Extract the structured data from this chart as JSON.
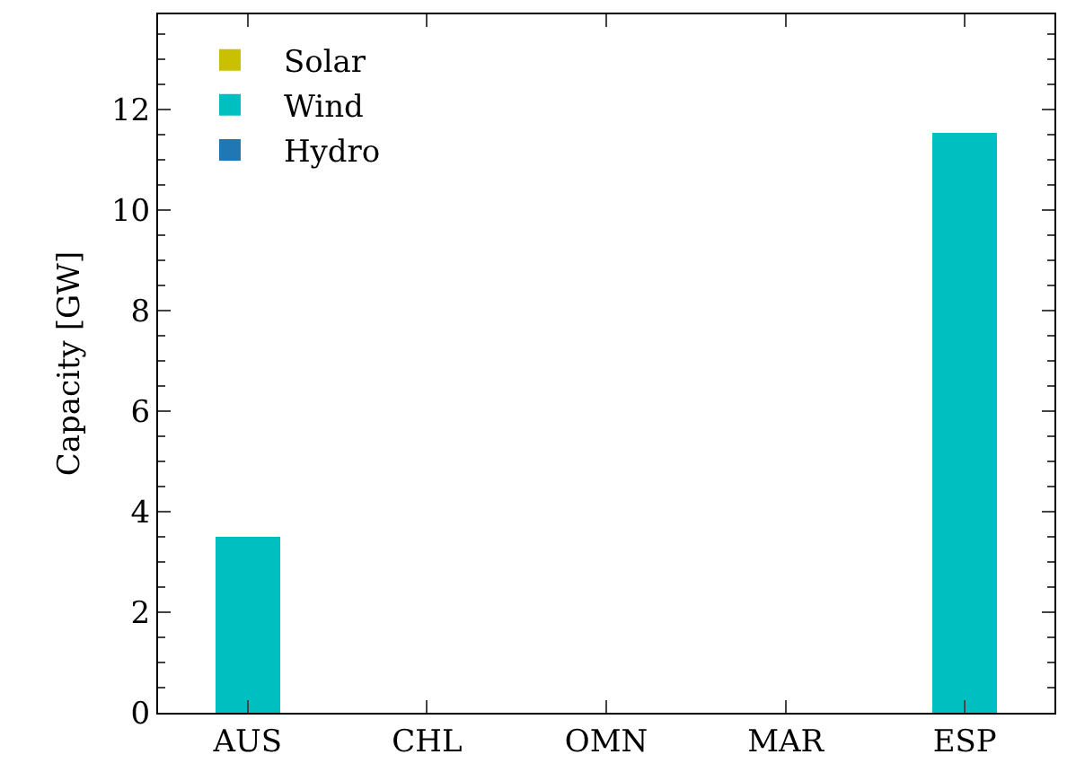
{
  "chart_data": {
    "type": "bar",
    "ylabel": "Capacity [GW]",
    "categories": [
      "AUS",
      "CHL",
      "OMN",
      "MAR",
      "ESP"
    ],
    "series": [
      {
        "name": "Solar",
        "color": "#c8c000",
        "values": [
          0,
          0,
          0,
          0,
          0
        ]
      },
      {
        "name": "Wind",
        "color": "#00bfc0",
        "values": [
          3.5,
          0,
          0,
          0,
          11.55
        ]
      },
      {
        "name": "Hydro",
        "color": "#1f77b4",
        "values": [
          0,
          0,
          0,
          0,
          0
        ]
      }
    ],
    "stacked": true,
    "ylim": [
      0,
      13.9
    ],
    "yticks": [
      0,
      2,
      4,
      6,
      8,
      10,
      12
    ],
    "grid": false,
    "legend": "top left"
  }
}
